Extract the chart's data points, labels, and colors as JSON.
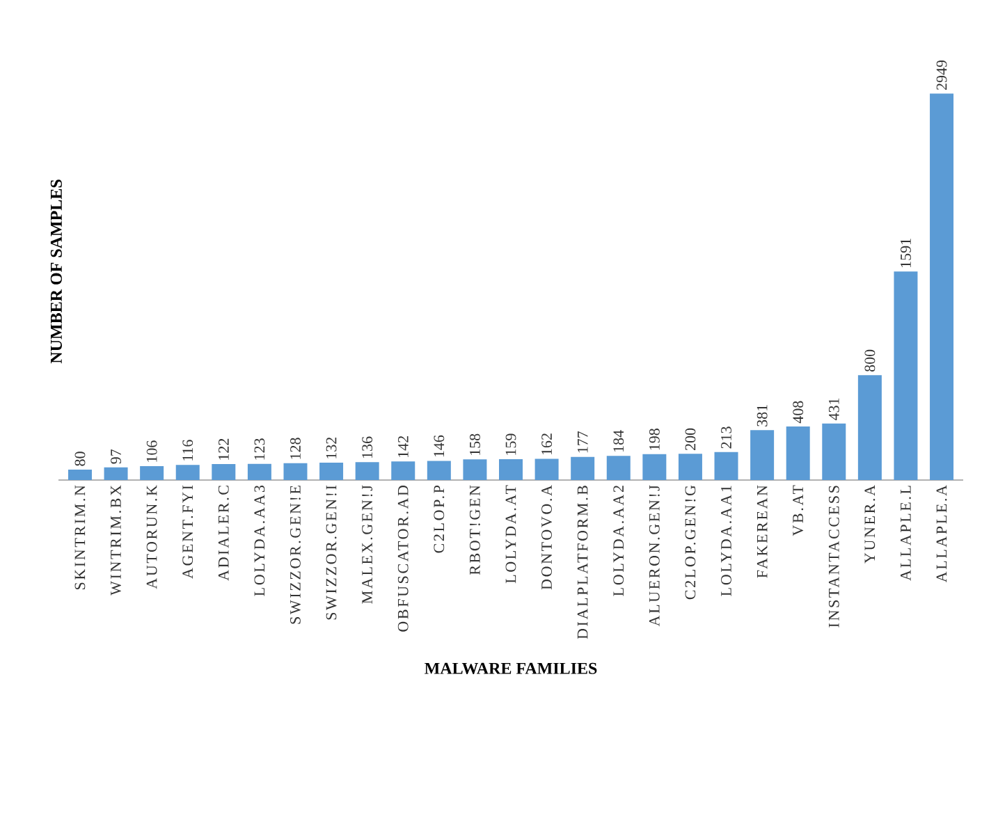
{
  "chart_data": {
    "type": "bar",
    "xlabel": "MALWARE FAMILIES",
    "ylabel": "NUMBER OF SAMPLES",
    "categories": [
      "SKINTRIM.N",
      "WINTRIM.BX",
      "AUTORUN.K",
      "AGENT.FYI",
      "ADIALER.C",
      "LOLYDA.AA3",
      "SWIZZOR.GEN!E",
      "SWIZZOR.GEN!I",
      "MALEX.GEN!J",
      "OBFUSCATOR.AD",
      "C2LOP.P",
      "RBOT!GEN",
      "LOLYDA.AT",
      "DONTOVO.A",
      "DIALPLATFORM.B",
      "LOLYDA.AA2",
      "ALUERON.GEN!J",
      "C2LOP.GEN!G",
      "LOLYDA.AA1",
      "FAKEREAN",
      "VB.AT",
      "INSTANTACCESS",
      "YUNER.A",
      "ALLAPLE.L",
      "ALLAPLE.A"
    ],
    "values": [
      80,
      97,
      106,
      116,
      122,
      123,
      128,
      132,
      136,
      142,
      146,
      158,
      159,
      162,
      177,
      184,
      198,
      200,
      213,
      381,
      408,
      431,
      800,
      1591,
      2949
    ],
    "color": "#5b9bd5",
    "data_labels": true
  }
}
